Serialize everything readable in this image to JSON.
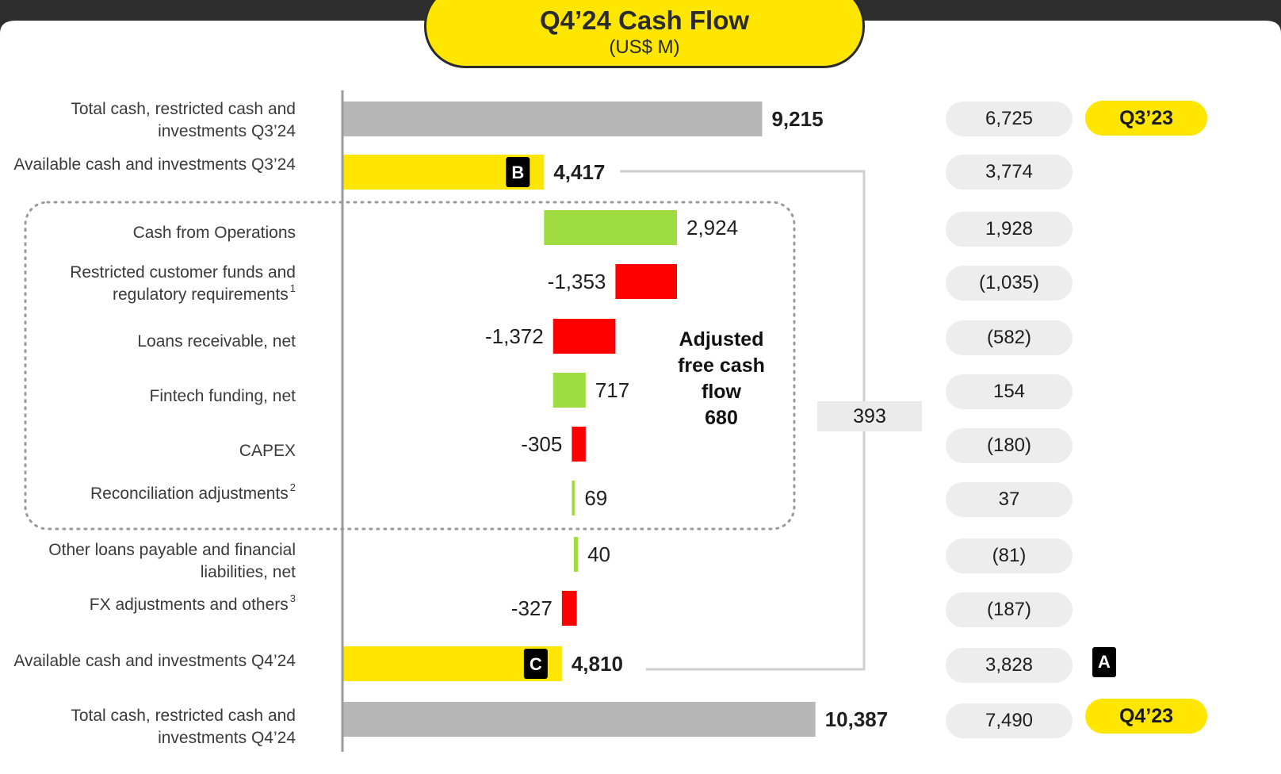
{
  "title": "Q4’24 Cash Flow",
  "subtitle": "(US$ M)",
  "colors": {
    "total": "#b7b7b7",
    "available": "#ffe600",
    "increase": "#9fdc40",
    "decrease": "#ff0000",
    "topband": "#2e2e2e"
  },
  "chart_data": {
    "type": "bar",
    "subtype": "waterfall",
    "rows": [
      {
        "label": "Total cash, restricted cash and investments Q3’24",
        "sup": "",
        "value": 9215,
        "value_label": "9,215",
        "kind": "total",
        "prior_year": "6,725"
      },
      {
        "label": "Available cash and investments Q3’24",
        "sup": "",
        "value": 4417,
        "value_label": "4,417",
        "kind": "available",
        "marker": "B",
        "prior_year": "3,774"
      },
      {
        "label": "Cash from Operations",
        "sup": "",
        "value": 2924,
        "value_label": "2,924",
        "kind": "delta",
        "prior_year": "1,928"
      },
      {
        "label": "Restricted customer funds and regulatory requirements",
        "sup": "1",
        "value": -1353,
        "value_label": "-1,353",
        "kind": "delta",
        "prior_year": "(1,035)"
      },
      {
        "label": "Loans receivable, net",
        "sup": "",
        "value": -1372,
        "value_label": "-1,372",
        "kind": "delta",
        "prior_year": "(582)"
      },
      {
        "label": "Fintech funding, net",
        "sup": "",
        "value": 717,
        "value_label": "717",
        "kind": "delta",
        "prior_year": "154"
      },
      {
        "label": "CAPEX",
        "sup": "",
        "value": -305,
        "value_label": "-305",
        "kind": "delta",
        "prior_year": "(180)"
      },
      {
        "label": "Reconciliation adjustments",
        "sup": "2",
        "value": 69,
        "value_label": "69",
        "kind": "delta",
        "prior_year": "37"
      },
      {
        "label": "Other loans payable and financial liabilities, net",
        "sup": "",
        "value": 40,
        "value_label": "40",
        "kind": "delta",
        "prior_year": "(81)"
      },
      {
        "label": "FX adjustments and others",
        "sup": "3",
        "value": -327,
        "value_label": "-327",
        "kind": "delta",
        "prior_year": "(187)"
      },
      {
        "label": "Available cash and investments Q4’24",
        "sup": "",
        "value": 4810,
        "value_label": "4,810",
        "kind": "available",
        "marker": "C",
        "prior_year": "3,828",
        "prior_marker": "A"
      },
      {
        "label": "Total cash, restricted cash and investments Q4’24",
        "sup": "",
        "value": 10387,
        "value_label": "10,387",
        "kind": "total",
        "prior_year": "7,490"
      }
    ],
    "adjusted_fcf": {
      "label_lines": [
        "Adjusted",
        "free cash",
        "flow"
      ],
      "value": "680"
    },
    "bridge_change": "393",
    "prior_year_tags": {
      "top": "Q3’23",
      "bottom": "Q4’23"
    }
  }
}
